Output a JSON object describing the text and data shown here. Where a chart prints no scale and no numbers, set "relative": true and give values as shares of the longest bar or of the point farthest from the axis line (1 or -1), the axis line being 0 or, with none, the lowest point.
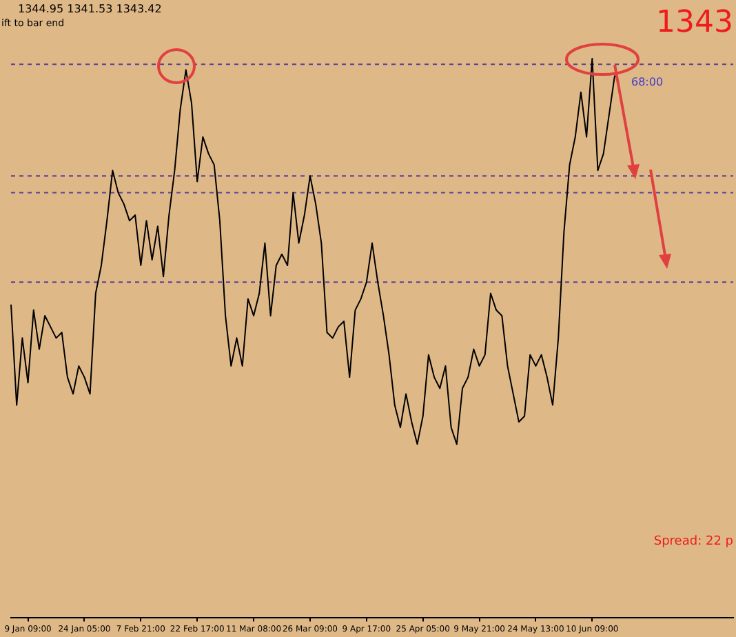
{
  "chart_data": {
    "type": "line",
    "relative": true,
    "annotations": [
      "1344.95 1341.53 1343.42",
      "ift to bar end",
      "1343",
      "68:00",
      "Spread: 22 p"
    ],
    "categories": [
      null,
      null,
      null,
      "9 Jan 09:00",
      null,
      null,
      null,
      null,
      null,
      null,
      null,
      null,
      null,
      "24 Jan 05:00",
      null,
      null,
      null,
      null,
      null,
      null,
      null,
      null,
      null,
      "7 Feb 21:00",
      null,
      null,
      null,
      null,
      null,
      null,
      null,
      null,
      null,
      "22 Feb 17:00",
      null,
      null,
      null,
      null,
      null,
      null,
      null,
      null,
      null,
      "11 Mar 08:00",
      null,
      null,
      null,
      null,
      null,
      null,
      null,
      null,
      null,
      "26 Mar 09:00",
      null,
      null,
      null,
      null,
      null,
      null,
      null,
      null,
      null,
      "9 Apr 17:00",
      null,
      null,
      null,
      null,
      null,
      null,
      null,
      null,
      null,
      "25 Apr 05:00",
      null,
      null,
      null,
      null,
      null,
      null,
      null,
      null,
      null,
      "9 May 21:00",
      null,
      null,
      null,
      null,
      null,
      null,
      null,
      null,
      null,
      "24 May 13:00",
      null,
      null,
      null,
      null,
      null,
      null,
      null,
      null,
      null,
      "10 Jun 09:00",
      null,
      null,
      null,
      null,
      null,
      null,
      null,
      null,
      null,
      null,
      null,
      null,
      null,
      null,
      null,
      null,
      null,
      null,
      null,
      null,
      null,
      null,
      null,
      null,
      null
    ],
    "series": [
      {
        "color": "#000000",
        "values": [
          0.56,
          0.38,
          0.5,
          0.42,
          0.55,
          0.48,
          0.54,
          0.52,
          0.5,
          0.51,
          0.43,
          0.4,
          0.45,
          0.43,
          0.4,
          0.58,
          0.63,
          0.71,
          0.8,
          0.76,
          0.74,
          0.71,
          0.72,
          0.63,
          0.71,
          0.64,
          0.7,
          0.61,
          0.72,
          0.8,
          0.91,
          0.98,
          0.92,
          0.78,
          0.86,
          0.83,
          0.81,
          0.71,
          0.54,
          0.45,
          0.5,
          0.45,
          0.57,
          0.54,
          0.58,
          0.67,
          0.54,
          0.63,
          0.65,
          0.63,
          0.76,
          0.67,
          0.72,
          0.79,
          0.74,
          0.67,
          0.51,
          0.5,
          0.52,
          0.53,
          0.43,
          0.55,
          0.57,
          0.6,
          0.67,
          0.6,
          0.54,
          0.47,
          0.38,
          0.34,
          0.4,
          0.35,
          0.31,
          0.36,
          0.47,
          0.43,
          0.41,
          0.45,
          0.34,
          0.31,
          0.41,
          0.43,
          0.48,
          0.45,
          0.47,
          0.58,
          0.55,
          0.54,
          0.45,
          0.4,
          0.35,
          0.36,
          0.47,
          0.45,
          0.47,
          0.43,
          0.38,
          0.5,
          0.69,
          0.81,
          0.86,
          0.94,
          0.86,
          1.0,
          0.8,
          0.83,
          0.9,
          0.97,
          null,
          null,
          null,
          null,
          null,
          null,
          null,
          null,
          null,
          null,
          null,
          null,
          null,
          null,
          null,
          null,
          null,
          null,
          null,
          null,
          null
        ]
      }
    ],
    "ref_lines": [
      {
        "axis": "y",
        "value": 0.99,
        "color": "#5a3f96",
        "line_style": "dashed"
      },
      {
        "axis": "y",
        "value": 0.79,
        "color": "#5a3f96",
        "line_style": "dashed"
      },
      {
        "axis": "y",
        "value": 0.76,
        "color": "#5a3f96",
        "line_style": "dashed"
      },
      {
        "axis": "y",
        "value": 0.6,
        "color": "#5a3f96",
        "line_style": "dashed"
      }
    ],
    "grid": false,
    "legend": false,
    "marker": "none",
    "line_style": "solid"
  }
}
